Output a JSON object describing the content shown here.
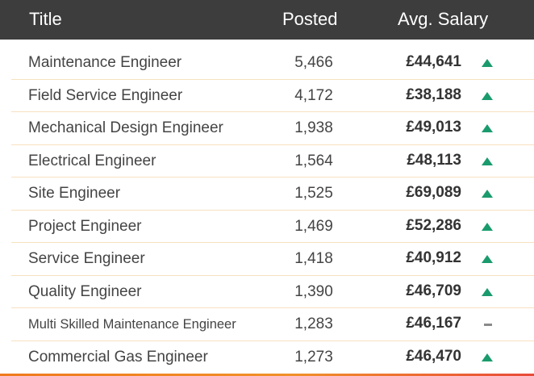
{
  "header": {
    "title": "Title",
    "posted": "Posted",
    "salary": "Avg. Salary"
  },
  "rows": [
    {
      "title": "Maintenance Engineer",
      "posted": "5,466",
      "salary": "£44,641",
      "trend": "up"
    },
    {
      "title": "Field Service Engineer",
      "posted": "4,172",
      "salary": "£38,188",
      "trend": "up"
    },
    {
      "title": "Mechanical Design Engineer",
      "posted": "1,938",
      "salary": "£49,013",
      "trend": "up"
    },
    {
      "title": "Electrical Engineer",
      "posted": "1,564",
      "salary": "£48,113",
      "trend": "up"
    },
    {
      "title": "Site Engineer",
      "posted": "1,525",
      "salary": "£69,089",
      "trend": "up"
    },
    {
      "title": "Project Engineer",
      "posted": "1,469",
      "salary": "£52,286",
      "trend": "up"
    },
    {
      "title": "Service Engineer",
      "posted": "1,418",
      "salary": "£40,912",
      "trend": "up"
    },
    {
      "title": "Quality Engineer",
      "posted": "1,390",
      "salary": "£46,709",
      "trend": "up"
    },
    {
      "title": "Multi Skilled Maintenance Engineer",
      "posted": "1,283",
      "salary": "£46,167",
      "trend": "flat"
    },
    {
      "title": "Commercial Gas  Engineer",
      "posted": "1,273",
      "salary": "£46,470",
      "trend": "up"
    }
  ],
  "colors": {
    "header_bg": "#3d3d3d",
    "trend_up": "#1a9b6d",
    "trend_flat": "#8a8a8a",
    "divider": "#f8e1c0",
    "accent": "#ef7b1e"
  }
}
